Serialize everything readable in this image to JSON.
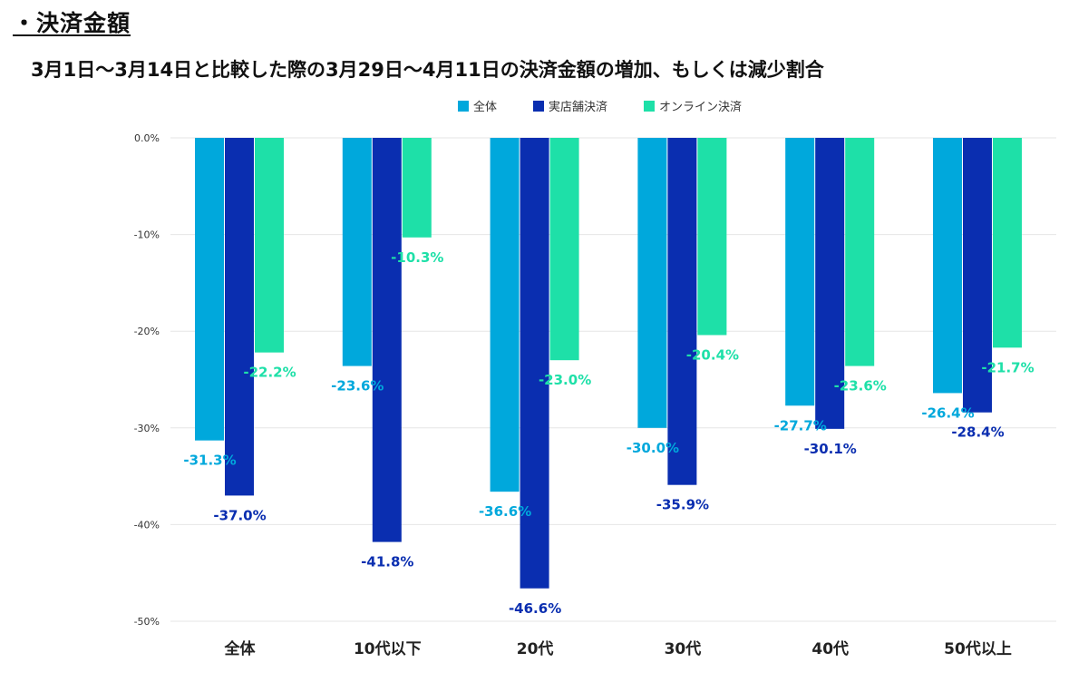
{
  "heading": "・決済金額",
  "chart_data": {
    "type": "bar",
    "title": "3月1日～3月14日と比較した際の3月29日～4月11日の決済金額の増加、もしくは減少割合",
    "xlabel": "",
    "ylabel": "",
    "ylim": [
      -50,
      0
    ],
    "yticks": [
      "0.0%",
      "-10%",
      "-20%",
      "-30%",
      "-40%",
      "-50%"
    ],
    "ytick_values": [
      0,
      -10,
      -20,
      -30,
      -40,
      -50
    ],
    "grid": true,
    "legend_position": "top-center",
    "categories": [
      "全体",
      "10代以下",
      "20代",
      "30代",
      "40代",
      "50代以上"
    ],
    "series": [
      {
        "name": "全体",
        "color": "#00a8dc",
        "values": [
          -31.3,
          -23.6,
          -36.6,
          -30.0,
          -27.7,
          -26.4
        ],
        "labels": [
          "-31.3%",
          "-23.6%",
          "-36.6%",
          "-30.0%",
          "-27.7%",
          "-26.4%"
        ]
      },
      {
        "name": "実店舗決済",
        "color": "#0a2eb0",
        "values": [
          -37.0,
          -41.8,
          -46.6,
          -35.9,
          -30.1,
          -28.4
        ],
        "labels": [
          "-37.0%",
          "-41.8%",
          "-46.6%",
          "-35.9%",
          "-30.1%",
          "-28.4%"
        ]
      },
      {
        "name": "オンライン決済",
        "color": "#1ee0a8",
        "values": [
          -22.2,
          -10.3,
          -23.0,
          -20.4,
          -23.6,
          -21.7
        ],
        "labels": [
          "-22.2%",
          "-10.3%",
          "-23.0%",
          "-20.4%",
          "-23.6%",
          "-21.7%"
        ]
      }
    ]
  }
}
